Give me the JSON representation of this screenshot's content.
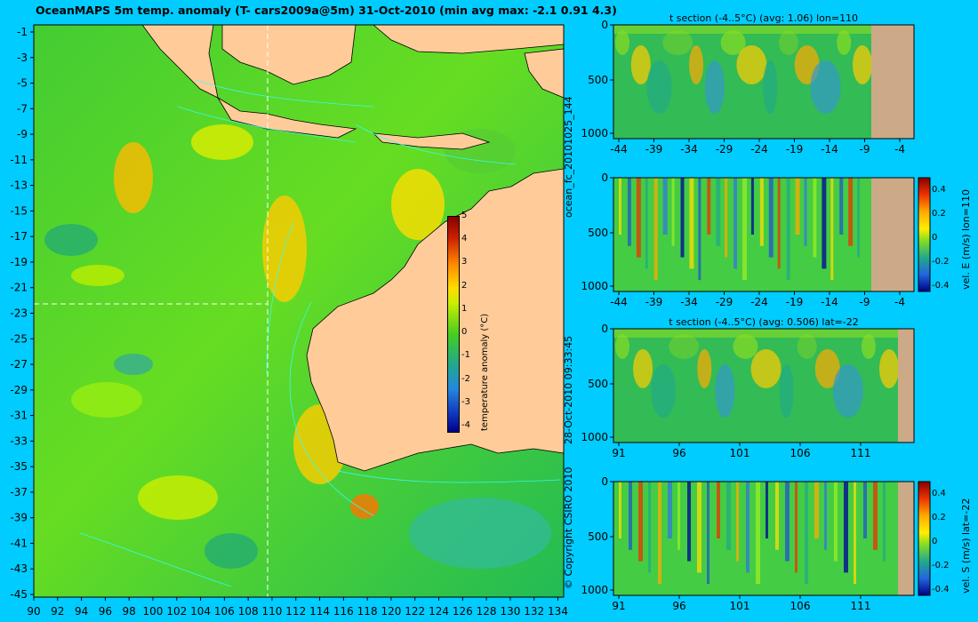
{
  "title": "OceanMAPS 5m temp. anomaly (T- cars2009a@5m) 31-Oct-2010 (min avg max: -2.1 0.91 4.3)",
  "map": {
    "y_labels": [
      "-1",
      "-3",
      "-5",
      "-7",
      "-9",
      "-11",
      "-13",
      "-15",
      "-17",
      "-19",
      "-21",
      "-23",
      "-25",
      "-27",
      "-29",
      "-31",
      "-33",
      "-35",
      "-37",
      "-39",
      "-41",
      "-43",
      "-45"
    ],
    "x_labels": [
      "90",
      "92",
      "94",
      "96",
      "98",
      "100",
      "102",
      "104",
      "106",
      "108",
      "110",
      "112",
      "114",
      "116",
      "118",
      "120",
      "122",
      "124",
      "126",
      "128",
      "130",
      "132",
      "134"
    ],
    "colorbar": {
      "label": "temperature anomaly (°C)",
      "ticks": [
        "5",
        "4",
        "3",
        "2",
        "1",
        "0",
        "-1",
        "-2",
        "-3",
        "-4"
      ]
    }
  },
  "side_text": {
    "run_id": "ocean_fc_20101025_144",
    "timestamp": "28-Oct-2010 09:33:45",
    "copyright": "© Copyright CSIRO 2010"
  },
  "panels": [
    {
      "title": "t section (-4..5°C) (avg: 1.06) lon=110",
      "y_ticks": [
        "0",
        "500",
        "1000"
      ],
      "x_ticks": [
        "-44",
        "-39",
        "-34",
        "-29",
        "-24",
        "-19",
        "-14",
        "-9",
        "-4"
      ],
      "side_label": "",
      "cbar_ticks": []
    },
    {
      "title": "",
      "y_ticks": [
        "0",
        "500",
        "1000"
      ],
      "x_ticks": [
        "-44",
        "-39",
        "-34",
        "-29",
        "-24",
        "-19",
        "-14",
        "-9",
        "-4"
      ],
      "side_label": "vel. E (m/s) lon=110",
      "cbar_ticks": [
        "0.4",
        "0.2",
        "0",
        "-0.2",
        "-0.4"
      ]
    },
    {
      "title": "t section (-4..5°C) (avg: 0.506) lat=-22",
      "y_ticks": [
        "0",
        "500",
        "1000"
      ],
      "x_ticks": [
        "91",
        "96",
        "101",
        "106",
        "111"
      ],
      "side_label": "",
      "cbar_ticks": []
    },
    {
      "title": "",
      "y_ticks": [
        "0",
        "500",
        "1000"
      ],
      "x_ticks": [
        "91",
        "96",
        "101",
        "106",
        "111"
      ],
      "side_label": "vel. S (m/s) lat=-22",
      "cbar_ticks": [
        "0.4",
        "0.2",
        "0",
        "-0.2",
        "-0.4"
      ]
    }
  ]
}
